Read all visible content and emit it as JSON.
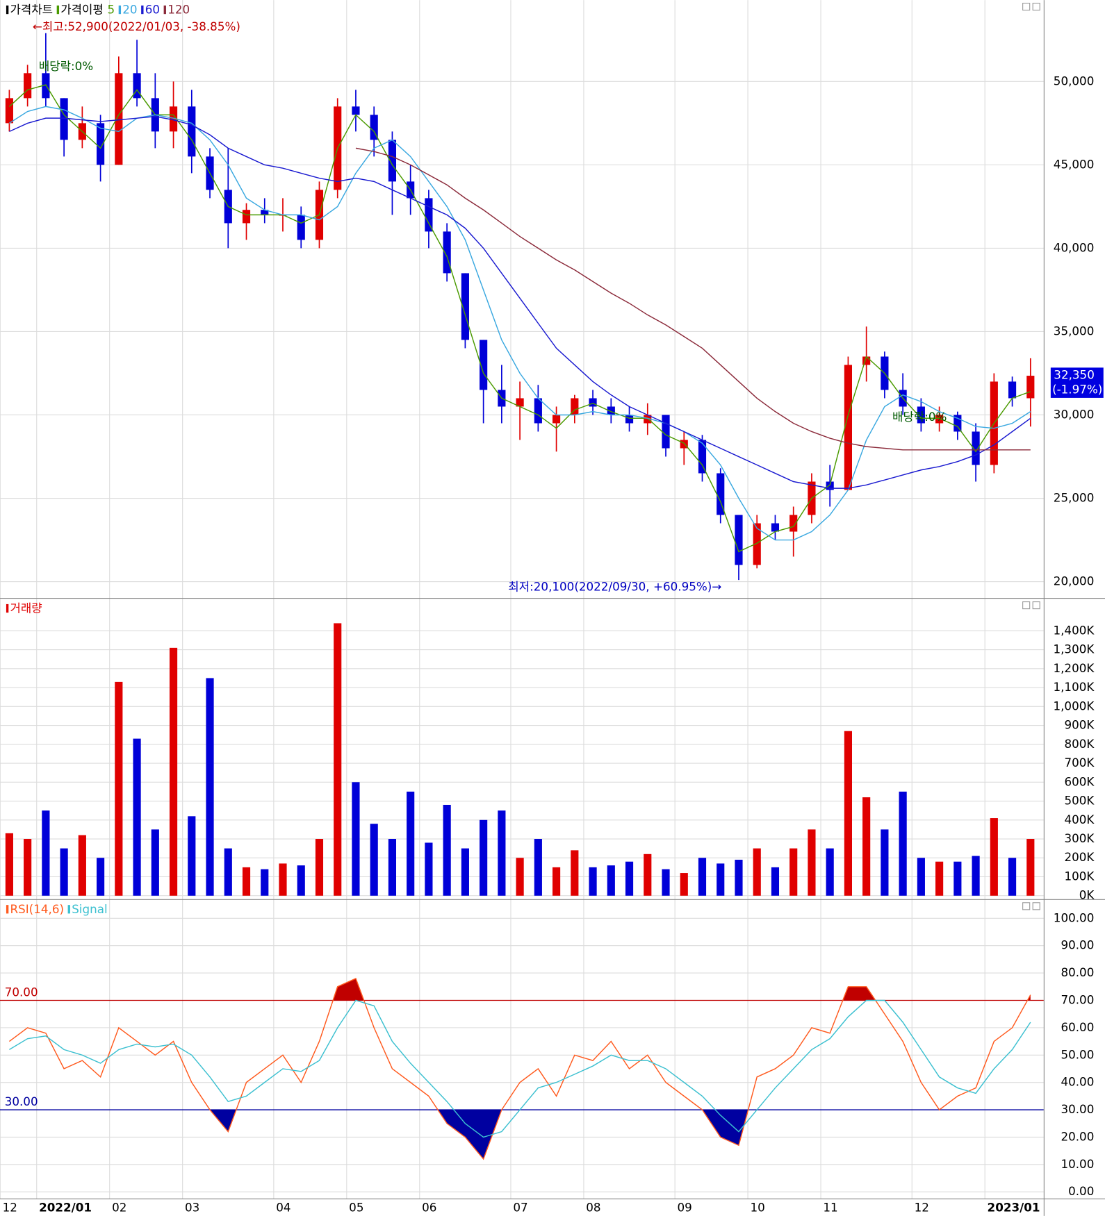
{
  "chart_data": [
    {
      "type": "candlestick",
      "title": "가격차트",
      "ma_title": "가격이평",
      "categories": [
        "12",
        null,
        "2022/01",
        null,
        null,
        null,
        "02",
        null,
        null,
        null,
        "03",
        null,
        null,
        null,
        null,
        "04",
        null,
        null,
        null,
        "05",
        null,
        null,
        null,
        "06",
        null,
        null,
        null,
        null,
        "07",
        null,
        null,
        null,
        "08",
        null,
        null,
        null,
        null,
        "09",
        null,
        null,
        null,
        "10",
        null,
        null,
        null,
        "11",
        null,
        null,
        null,
        null,
        "12",
        null,
        null,
        null,
        "2023/01",
        null,
        null
      ],
      "open": [
        47500,
        49000,
        50500,
        49000,
        46500,
        47500,
        45000,
        50500,
        49000,
        47000,
        48500,
        45500,
        43500,
        41500,
        42300,
        42000,
        42000,
        40500,
        43500,
        48500,
        48000,
        46500,
        44000,
        43000,
        41000,
        38500,
        34500,
        31500,
        30500,
        31000,
        29500,
        30000,
        31000,
        30500,
        30000,
        29500,
        30000,
        28000,
        28500,
        26500,
        24000,
        21000,
        23500,
        23000,
        24000,
        26000,
        25500,
        33000,
        33500,
        31500,
        30500,
        29500,
        30000,
        29000,
        27000,
        32000,
        31000
      ],
      "high": [
        49500,
        51000,
        52900,
        49000,
        48500,
        48000,
        51500,
        52500,
        50500,
        50000,
        49500,
        46000,
        46000,
        42700,
        43000,
        43000,
        42500,
        44000,
        49000,
        49500,
        48500,
        47000,
        45000,
        43500,
        41500,
        38500,
        34500,
        33000,
        32000,
        31800,
        30500,
        31200,
        31500,
        31000,
        30500,
        30700,
        30000,
        29000,
        28800,
        26800,
        24000,
        24000,
        24000,
        24500,
        26500,
        27000,
        33500,
        35300,
        33800,
        32500,
        31000,
        30500,
        30200,
        29500,
        32500,
        32300,
        33400
      ],
      "low": [
        47000,
        48500,
        48500,
        45500,
        46000,
        44000,
        45000,
        48500,
        46000,
        46000,
        44500,
        43000,
        40000,
        40500,
        41500,
        41000,
        40000,
        40000,
        43000,
        47000,
        45500,
        42000,
        42000,
        40000,
        38000,
        34000,
        29500,
        29500,
        28500,
        29000,
        27800,
        29500,
        30000,
        29500,
        29000,
        28800,
        27500,
        27000,
        26000,
        23500,
        20100,
        20800,
        22500,
        21500,
        23500,
        24500,
        25500,
        32000,
        31000,
        30000,
        29000,
        29000,
        28500,
        26000,
        26500,
        30500,
        29300
      ],
      "close": [
        49000,
        50500,
        49000,
        46500,
        47500,
        45000,
        50500,
        49000,
        47000,
        48500,
        45500,
        43500,
        41500,
        42300,
        42000,
        42000,
        40500,
        43500,
        48500,
        48000,
        46500,
        44000,
        43000,
        41000,
        38500,
        34500,
        31500,
        30500,
        31000,
        29500,
        30000,
        31000,
        30500,
        30000,
        29500,
        30000,
        28000,
        28500,
        26500,
        24000,
        21000,
        23500,
        23000,
        24000,
        26000,
        25500,
        33000,
        33500,
        31500,
        30500,
        29500,
        30000,
        29000,
        27000,
        32000,
        31000,
        32350
      ],
      "up_color": "#e00000",
      "down_color": "#0000d8",
      "series": [
        {
          "name": "5",
          "color": "#4a9a00",
          "values": [
            48500,
            49500,
            49800,
            48000,
            47000,
            46000,
            48000,
            49500,
            48000,
            48000,
            46500,
            44500,
            42500,
            42000,
            42000,
            42000,
            41500,
            42000,
            46000,
            48000,
            47000,
            45000,
            43500,
            41500,
            39500,
            36000,
            32500,
            31000,
            30500,
            30000,
            29200,
            30300,
            30700,
            30200,
            29800,
            29800,
            28800,
            28300,
            27000,
            24800,
            21800,
            22300,
            23000,
            23300,
            25000,
            25800,
            30000,
            33500,
            32500,
            31000,
            29800,
            29800,
            29300,
            27800,
            29500,
            31000,
            31400
          ]
        },
        {
          "name": "20",
          "color": "#3aa8e0",
          "values": [
            47500,
            48200,
            48500,
            48300,
            47800,
            47200,
            47000,
            47800,
            48000,
            47800,
            47500,
            46500,
            45000,
            43000,
            42300,
            42000,
            42000,
            41700,
            42500,
            44500,
            46000,
            46500,
            45500,
            44000,
            42500,
            40500,
            37500,
            34500,
            32500,
            31000,
            30000,
            30000,
            30200,
            30000,
            30000,
            29800,
            29500,
            29000,
            28300,
            27000,
            25000,
            23200,
            22500,
            22500,
            23000,
            24000,
            25500,
            28500,
            30500,
            31200,
            30800,
            30200,
            29800,
            29300,
            29200,
            29500,
            30200
          ]
        },
        {
          "name": "60",
          "color": "#1a1ad0",
          "values": [
            47000,
            47500,
            47800,
            47800,
            47700,
            47600,
            47700,
            47800,
            47900,
            47700,
            47400,
            46800,
            46000,
            45500,
            45000,
            44800,
            44500,
            44200,
            44000,
            44200,
            44000,
            43500,
            43000,
            42500,
            42000,
            41200,
            40000,
            38500,
            37000,
            35500,
            34000,
            33000,
            32000,
            31200,
            30500,
            30000,
            29500,
            29000,
            28500,
            28000,
            27500,
            27000,
            26500,
            26000,
            25800,
            25600,
            25600,
            25800,
            26100,
            26400,
            26700,
            26900,
            27200,
            27600,
            28200,
            29000,
            29800
          ]
        },
        {
          "name": "120",
          "color": "#8b2a3a",
          "values": [
            null,
            null,
            null,
            null,
            null,
            null,
            null,
            null,
            null,
            null,
            null,
            null,
            null,
            null,
            null,
            null,
            null,
            null,
            null,
            46000,
            45800,
            45500,
            45000,
            44400,
            43800,
            43000,
            42300,
            41500,
            40700,
            40000,
            39300,
            38700,
            38000,
            37300,
            36700,
            36000,
            35400,
            34700,
            34000,
            33000,
            32000,
            31000,
            30200,
            29500,
            29000,
            28600,
            28300,
            28100,
            28000,
            27900,
            27900,
            27900,
            27900,
            27900,
            27900,
            27900,
            27900
          ]
        }
      ],
      "ylim": [
        19000,
        54000
      ],
      "yticks": [
        {
          "value": 20000,
          "label": "20,000"
        },
        {
          "value": 25000,
          "label": "25,000"
        },
        {
          "value": 30000,
          "label": "30,000"
        },
        {
          "value": 35000,
          "label": "35,000"
        },
        {
          "value": 40000,
          "label": "40,000"
        },
        {
          "value": 45000,
          "label": "45,000"
        },
        {
          "value": 50000,
          "label": "50,000"
        }
      ],
      "annotations": [
        {
          "text": "←최고:52,900(2022/01/03, -38.85%)",
          "color": "#c00000"
        },
        {
          "text": "배당락:0%",
          "color": "#005a00"
        },
        {
          "text": "배당락:0%",
          "color": "#005a00"
        },
        {
          "text": "최저:20,100(2022/09/30, +60.95%)→",
          "color": "#0000c0"
        }
      ],
      "last_price_label": "32,350",
      "last_change_label": "(-1.97%)",
      "last_tag_color": "#0000e0",
      "grid": true
    },
    {
      "type": "bar",
      "title": "거래량",
      "values": [
        330,
        300,
        450,
        250,
        320,
        200,
        1130,
        830,
        350,
        1310,
        420,
        1150,
        250,
        150,
        140,
        170,
        160,
        300,
        1440,
        600,
        380,
        300,
        550,
        280,
        480,
        250,
        400,
        450,
        200,
        300,
        150,
        240,
        150,
        160,
        180,
        220,
        140,
        120,
        200,
        170,
        190,
        250,
        150,
        250,
        350,
        250,
        870,
        520,
        350,
        550,
        200,
        180,
        180,
        210,
        410,
        200,
        300
      ],
      "ylim": [
        0,
        1500
      ],
      "yticks": [
        {
          "value": 0,
          "label": "0K"
        },
        {
          "value": 100,
          "label": "100K"
        },
        {
          "value": 200,
          "label": "200K"
        },
        {
          "value": 300,
          "label": "300K"
        },
        {
          "value": 400,
          "label": "400K"
        },
        {
          "value": 500,
          "label": "500K"
        },
        {
          "value": 600,
          "label": "600K"
        },
        {
          "value": 700,
          "label": "700K"
        },
        {
          "value": 800,
          "label": "800K"
        },
        {
          "value": 900,
          "label": "900K"
        },
        {
          "value": 1000,
          "label": "1,000K"
        },
        {
          "value": 1100,
          "label": "1,100K"
        },
        {
          "value": 1200,
          "label": "1,200K"
        },
        {
          "value": 1300,
          "label": "1,300K"
        },
        {
          "value": 1400,
          "label": "1,400K"
        }
      ],
      "title_color": "#e00000",
      "grid": true
    },
    {
      "type": "line",
      "series": [
        {
          "name": "RSI(14,6)",
          "color": "#ff5a1e",
          "values": [
            55,
            60,
            58,
            45,
            48,
            42,
            60,
            55,
            50,
            55,
            40,
            30,
            22,
            40,
            45,
            50,
            40,
            55,
            75,
            78,
            60,
            45,
            40,
            35,
            25,
            20,
            12,
            30,
            40,
            45,
            35,
            50,
            48,
            55,
            45,
            50,
            40,
            35,
            30,
            20,
            17,
            42,
            45,
            50,
            60,
            58,
            75,
            75,
            65,
            55,
            40,
            30,
            35,
            38,
            55,
            60,
            72
          ]
        },
        {
          "name": "Signal",
          "color": "#3cc0d0",
          "values": [
            52,
            56,
            57,
            52,
            50,
            47,
            52,
            54,
            53,
            54,
            50,
            42,
            33,
            35,
            40,
            45,
            44,
            48,
            60,
            70,
            68,
            55,
            47,
            40,
            33,
            25,
            20,
            22,
            30,
            38,
            40,
            43,
            46,
            50,
            48,
            48,
            45,
            40,
            35,
            28,
            22,
            30,
            38,
            45,
            52,
            56,
            64,
            70,
            70,
            62,
            52,
            42,
            38,
            36,
            45,
            52,
            62
          ]
        }
      ],
      "reference_lines": [
        {
          "value": 70,
          "label": "70.00",
          "color": "#c00000"
        },
        {
          "value": 30,
          "label": "30.00",
          "color": "#0000a0"
        }
      ],
      "ylim": [
        -2,
        106
      ],
      "yticks": [
        {
          "value": 0,
          "label": "0.00"
        },
        {
          "value": 10,
          "label": "10.00"
        },
        {
          "value": 20,
          "label": "20.00"
        },
        {
          "value": 30,
          "label": "30.00"
        },
        {
          "value": 40,
          "label": "40.00"
        },
        {
          "value": 50,
          "label": "50.00"
        },
        {
          "value": 60,
          "label": "60.00"
        },
        {
          "value": 70,
          "label": "70.00"
        },
        {
          "value": 80,
          "label": "80.00"
        },
        {
          "value": 90,
          "label": "90.00"
        },
        {
          "value": 100,
          "label": "100.00"
        }
      ],
      "grid": true
    }
  ]
}
